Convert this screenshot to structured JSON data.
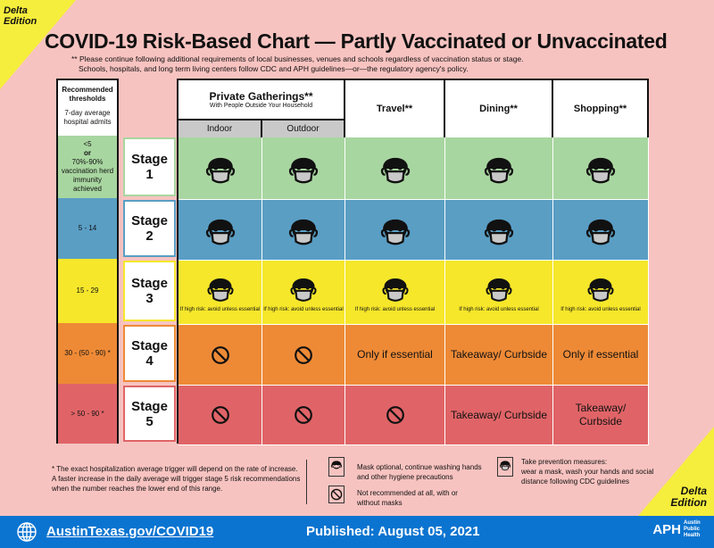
{
  "edition": "Delta Edition",
  "edition_line1": "Delta",
  "edition_line2": "Edition",
  "title": "COVID-19 Risk-Based Chart — Partly Vaccinated or Unvaccinated",
  "notes": [
    "** Please continue following additional requirements of local businesses, venues and schools regardless of vaccination status or stage.",
    "Schools, hospitals, and long term living centers follow CDC and APH guidelines—or—the regulatory agency's policy."
  ],
  "thresholds_header": {
    "title": "Recommended thresholds",
    "sub": "7-day average hospital admits"
  },
  "columns": {
    "private": "Private Gatherings**",
    "private_sub": "With People Outside Your Household",
    "indoor": "Indoor",
    "outdoor": "Outdoor",
    "travel": "Travel**",
    "dining": "Dining**",
    "shopping": "Shopping**"
  },
  "rows": [
    {
      "threshold": "<5",
      "threshold2": "or",
      "threshold3": "70%-90% vaccination herd immunity achieved",
      "stage": "Stage",
      "num": "1",
      "color": "#a8d6a0",
      "cells": [
        "mask",
        "mask",
        "mask",
        "mask",
        "mask"
      ]
    },
    {
      "threshold": "5 - 14",
      "stage": "Stage",
      "num": "2",
      "color": "#5a9ec4",
      "cells": [
        "mask",
        "mask",
        "mask",
        "mask",
        "mask"
      ]
    },
    {
      "threshold": "15 - 29",
      "stage": "Stage",
      "num": "3",
      "color": "#f6e72b",
      "cells": [
        "mask",
        "mask",
        "mask",
        "mask",
        "mask"
      ],
      "note": "If high risk: avoid unless essential"
    },
    {
      "threshold": "30 - (50 - 90) *",
      "stage": "Stage",
      "num": "4",
      "color": "#ee8a36",
      "cells": [
        "no",
        "no",
        "Only if essential",
        "Takeaway/ Curbside",
        "Only if essential"
      ]
    },
    {
      "threshold": "> 50 - 90 *",
      "stage": "Stage",
      "num": "5",
      "color": "#e06467",
      "cells": [
        "no",
        "no",
        "no",
        "Takeaway/ Curbside",
        "Takeaway/ Curbside"
      ]
    }
  ],
  "footnote": "* The exact hospitalization average trigger will depend on the rate of increase. A faster increase in the daily average will trigger stage 5 risk recommendations when the number reaches the lower end of this range.",
  "legend": {
    "mask_optional": "Mask optional, continue washing hands and other hygiene precautions",
    "not_recommended": "Not recommended at all, with or without masks",
    "prevention_title": "Take prevention measures:",
    "prevention": "wear a mask, wash your hands and social distance following CDC guidelines"
  },
  "footer": {
    "link": "AustinTexas.gov/COVID19",
    "published": "Published: August 05, 2021",
    "logo": "APH",
    "logo_text": "Austin Public Health"
  }
}
